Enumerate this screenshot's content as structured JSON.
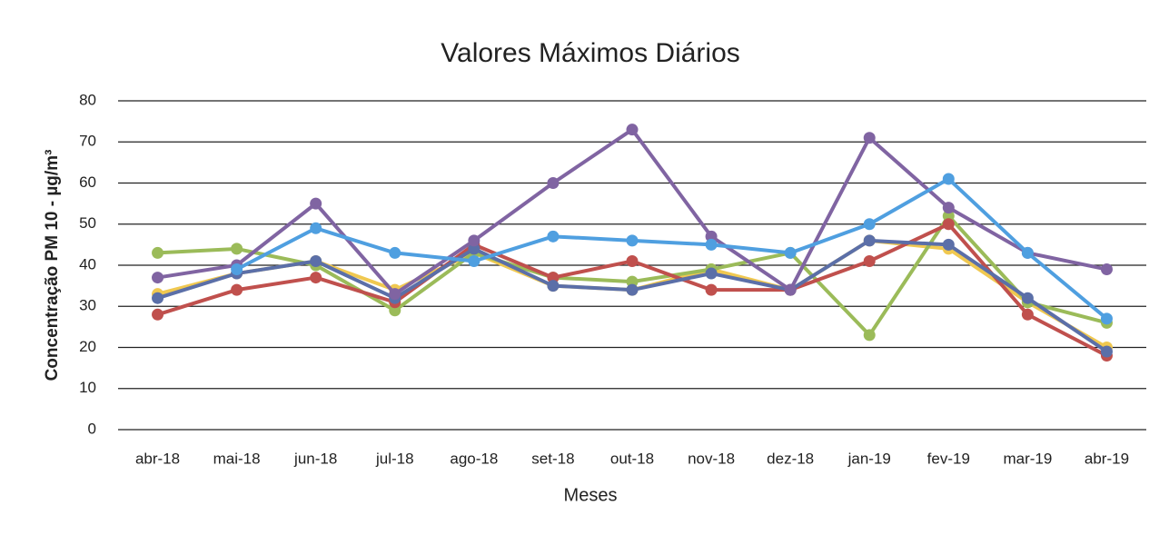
{
  "chart_data": {
    "type": "line",
    "title": "Valores Máximos Diários",
    "xlabel": "Meses",
    "ylabel": "Concentração PM 10 - µg/m³",
    "categories": [
      "abr-18",
      "mai-18",
      "jun-18",
      "jul-18",
      "ago-18",
      "set-18",
      "out-18",
      "nov-18",
      "dez-18",
      "jan-19",
      "fev-19",
      "mar-19",
      "abr-19"
    ],
    "ylim": [
      0,
      80
    ],
    "yticks": [
      0,
      10,
      20,
      30,
      40,
      50,
      60,
      70,
      80
    ],
    "grid": true,
    "series": [
      {
        "color": "#f0c850",
        "values": [
          33,
          38,
          41,
          34,
          43,
          35,
          34,
          39,
          34,
          46,
          44,
          31,
          20
        ]
      },
      {
        "color": "#9bbb59",
        "values": [
          43,
          44,
          40,
          29,
          43,
          37,
          36,
          39,
          43,
          23,
          52,
          31,
          26
        ]
      },
      {
        "color": "#c0504d",
        "values": [
          28,
          34,
          37,
          31,
          45,
          37,
          41,
          34,
          34,
          41,
          50,
          28,
          18
        ]
      },
      {
        "color": "#5b6fa8",
        "values": [
          32,
          38,
          41,
          32,
          44,
          35,
          34,
          38,
          34,
          46,
          45,
          32,
          19
        ]
      },
      {
        "color": "#8064a2",
        "values": [
          37,
          40,
          55,
          33,
          46,
          60,
          73,
          47,
          34,
          71,
          54,
          43,
          39
        ]
      },
      {
        "color": "#4f9fe0",
        "values": [
          null,
          39,
          49,
          43,
          41,
          47,
          46,
          45,
          43,
          50,
          61,
          43,
          27
        ]
      }
    ]
  }
}
